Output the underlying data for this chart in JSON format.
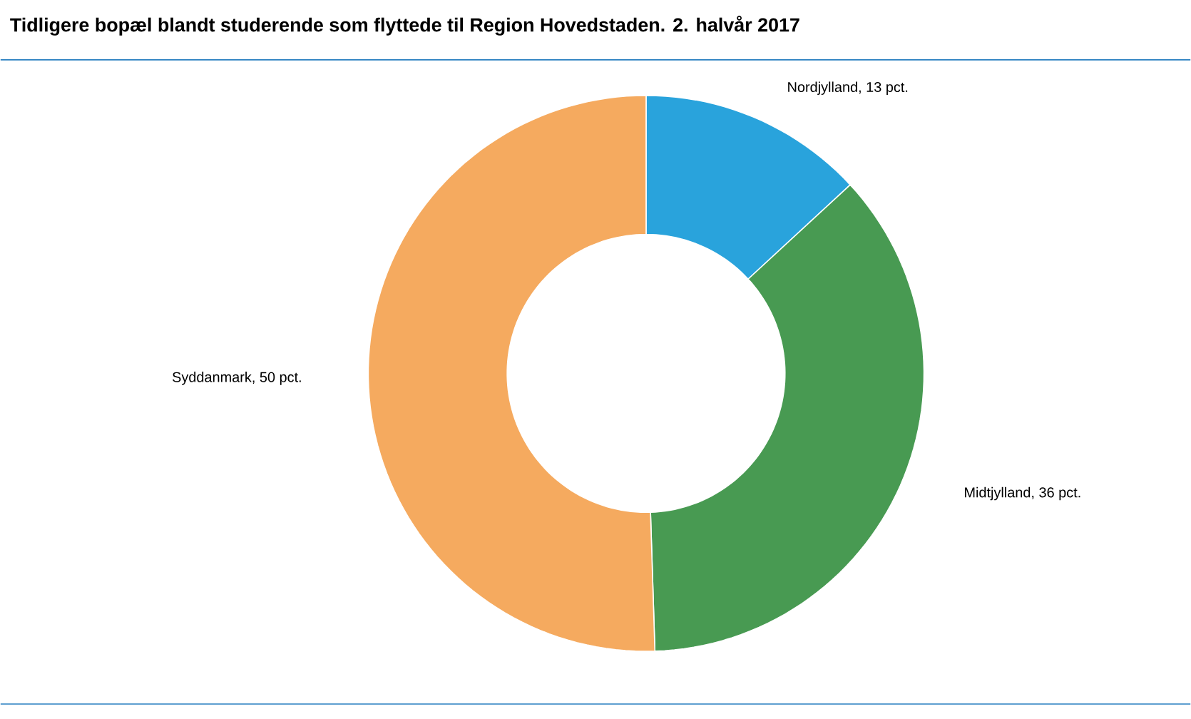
{
  "chart_data": {
    "type": "donut",
    "title": "Tidligere bopæl blandt studerende som flyttede til Region Hovedstaden. 2. halvår 2017",
    "categories": [
      "Nordjylland, 13 pct.",
      "Midtjylland, 36 pct.",
      "Syddanmark, 50 pct."
    ],
    "values": [
      13,
      36,
      50
    ],
    "colors": [
      "#29a3dc",
      "#489a52",
      "#f5aa5f"
    ]
  }
}
